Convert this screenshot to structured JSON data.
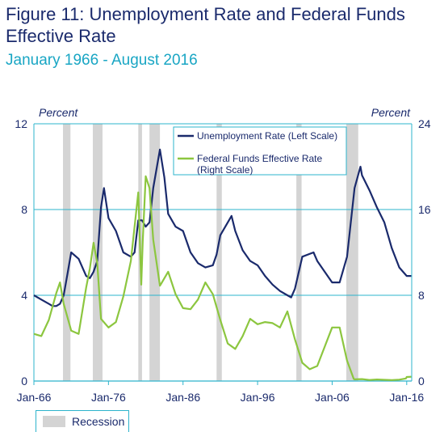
{
  "title": "Figure 11:  Unemployment Rate and Federal Funds Effective Rate",
  "subtitle": "January 1966 - August 2016",
  "recession_legend": "Recession",
  "colors": {
    "unemployment": "#1a2a6c",
    "fedfunds": "#8cc63f",
    "recession": "#d4d4d4",
    "grid": "#2db4cc",
    "text": "#1a2a6c"
  },
  "chart_data": {
    "type": "line",
    "x_range": [
      1966.0,
      2016.67
    ],
    "x_ticks": [
      {
        "label": "Jan-66",
        "x": 1966
      },
      {
        "label": "Jan-76",
        "x": 1976
      },
      {
        "label": "Jan-86",
        "x": 1986
      },
      {
        "label": "Jan-96",
        "x": 1996
      },
      {
        "label": "Jan-06",
        "x": 2006
      },
      {
        "label": "Jan-16",
        "x": 2016
      }
    ],
    "y_left": {
      "label": "Percent",
      "range": [
        0,
        12
      ],
      "ticks": [
        0,
        4,
        8,
        12
      ]
    },
    "y_right": {
      "label": "Percent",
      "range": [
        0,
        24
      ],
      "ticks": [
        0,
        8,
        16,
        24
      ]
    },
    "grid": true,
    "legend_position": "top-right",
    "recessions": [
      [
        1969.9,
        1970.9
      ],
      [
        1973.9,
        1975.2
      ],
      [
        1980.0,
        1980.5
      ],
      [
        1981.5,
        1982.9
      ],
      [
        1990.5,
        1991.2
      ],
      [
        2001.2,
        2001.9
      ],
      [
        2007.9,
        2009.5
      ]
    ],
    "series": [
      {
        "name": "Unemployment Rate (Left Scale)",
        "axis": "left",
        "x": [
          1966,
          1967,
          1968,
          1968.5,
          1969,
          1969.5,
          1970,
          1970.5,
          1971,
          1972,
          1973,
          1973.5,
          1974,
          1974.5,
          1975,
          1975.4,
          1976,
          1977,
          1978,
          1979,
          1979.5,
          1980,
          1980.5,
          1981,
          1981.5,
          1982,
          1982.9,
          1983.5,
          1984,
          1985,
          1986,
          1987,
          1988,
          1989,
          1990,
          1990.5,
          1991,
          1992.5,
          1993,
          1994,
          1995,
          1996,
          1997,
          1998,
          1999,
          2000,
          2000.5,
          2001,
          2002,
          2003.5,
          2004,
          2005,
          2006,
          2007,
          2008,
          2009,
          2009.8,
          2010,
          2011,
          2012,
          2013,
          2014,
          2015,
          2016,
          2016.6
        ],
        "y": [
          4.0,
          3.8,
          3.6,
          3.5,
          3.5,
          3.6,
          4.0,
          5.0,
          6.0,
          5.7,
          4.9,
          4.8,
          5.1,
          5.6,
          8.1,
          9.0,
          7.6,
          7.0,
          6.0,
          5.8,
          6.0,
          7.5,
          7.5,
          7.2,
          7.4,
          9.0,
          10.8,
          9.5,
          7.8,
          7.2,
          7.0,
          6.0,
          5.5,
          5.3,
          5.4,
          5.9,
          6.8,
          7.7,
          7.0,
          6.1,
          5.6,
          5.4,
          4.9,
          4.5,
          4.2,
          4.0,
          3.9,
          4.3,
          5.8,
          6.0,
          5.6,
          5.1,
          4.6,
          4.6,
          5.8,
          9.0,
          10.0,
          9.6,
          8.9,
          8.1,
          7.4,
          6.2,
          5.3,
          4.9,
          4.9
        ]
      },
      {
        "name": "Federal Funds Effective Rate\n(Right Scale)",
        "axis": "right",
        "x": [
          1966,
          1967,
          1968,
          1969,
          1969.5,
          1970,
          1971,
          1972,
          1973,
          1973.5,
          1974,
          1974.5,
          1975,
          1976,
          1977,
          1978,
          1979,
          1980,
          1980.4,
          1980.6,
          1981,
          1981.5,
          1982,
          1982.9,
          1983,
          1984,
          1985,
          1986,
          1987,
          1988,
          1989,
          1990,
          1991,
          1992,
          1993,
          1994,
          1995,
          1996,
          1997,
          1998,
          1999,
          2000,
          2001,
          2002,
          2003,
          2004,
          2005,
          2006,
          2007,
          2008,
          2008.9,
          2009,
          2010,
          2011,
          2012,
          2013,
          2014,
          2015,
          2015.9,
          2016,
          2016.6
        ],
        "y": [
          4.4,
          4.2,
          5.7,
          8.2,
          9.2,
          7.2,
          4.7,
          4.4,
          8.7,
          10.5,
          12.9,
          11.0,
          5.8,
          5.0,
          5.5,
          7.9,
          11.2,
          17.6,
          9.0,
          13.0,
          19.1,
          18.0,
          13.2,
          8.9,
          9.0,
          10.2,
          8.1,
          6.8,
          6.7,
          7.6,
          9.2,
          8.1,
          5.7,
          3.5,
          3.0,
          4.2,
          5.8,
          5.3,
          5.5,
          5.4,
          5.0,
          6.5,
          3.9,
          1.7,
          1.1,
          1.4,
          3.2,
          5.0,
          5.0,
          1.9,
          0.2,
          0.16,
          0.18,
          0.1,
          0.14,
          0.11,
          0.09,
          0.13,
          0.24,
          0.38,
          0.4
        ]
      }
    ]
  }
}
